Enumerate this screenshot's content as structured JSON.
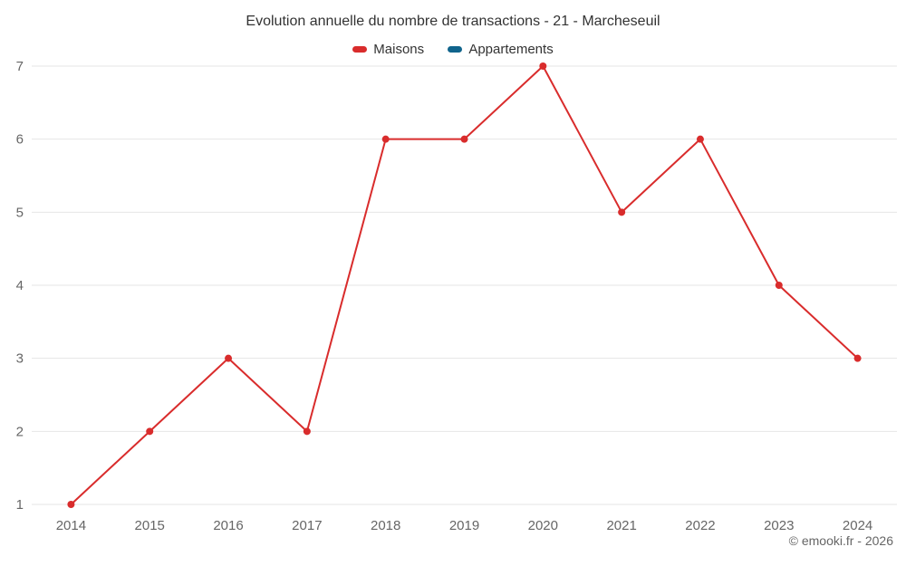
{
  "chart_data": {
    "type": "line",
    "title": "Evolution annuelle du nombre de transactions - 21 - Marcheseuil",
    "categories": [
      "2014",
      "2015",
      "2016",
      "2017",
      "2018",
      "2019",
      "2020",
      "2021",
      "2022",
      "2023",
      "2024"
    ],
    "series": [
      {
        "name": "Maisons",
        "color": "#d92c2c",
        "values": [
          1,
          2,
          3,
          2,
          6,
          6,
          7,
          5,
          6,
          4,
          3
        ]
      },
      {
        "name": "Appartements",
        "color": "#10648c",
        "values": []
      }
    ],
    "xlabel": "",
    "ylabel": "",
    "ylim": [
      1,
      7
    ],
    "yticks": [
      1,
      2,
      3,
      4,
      5,
      6,
      7
    ],
    "grid": "horizontal",
    "gridline_color": "#e6e6e6",
    "axis_label_color": "#666666",
    "legend_position": "top"
  },
  "footer": {
    "credit": "© emooki.fr - 2026"
  }
}
